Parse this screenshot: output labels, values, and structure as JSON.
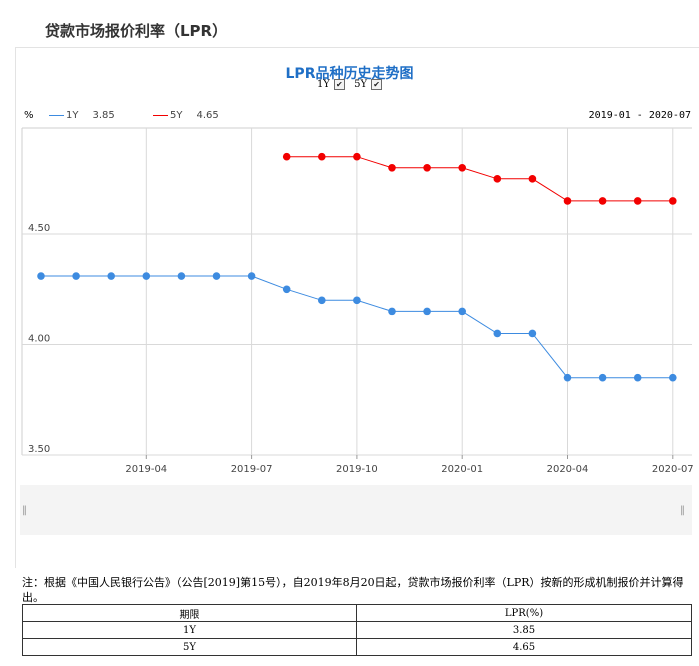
{
  "page": {
    "title": "贷款市场报价利率（LPR）"
  },
  "chart_header": {
    "title": "LPR品种历史走势图",
    "toggles": [
      {
        "label": "1Y",
        "checked": true
      },
      {
        "label": "5Y",
        "checked": true
      }
    ],
    "unit": "%",
    "range": "2019-01 - 2020-07"
  },
  "chart_data": {
    "type": "line",
    "x": [
      "2019-01",
      "2019-02",
      "2019-03",
      "2019-04",
      "2019-05",
      "2019-06",
      "2019-07",
      "2019-08",
      "2019-09",
      "2019-10",
      "2019-11",
      "2019-12",
      "2020-01",
      "2020-02",
      "2020-03",
      "2020-04",
      "2020-05",
      "2020-06",
      "2020-07"
    ],
    "xticks": [
      "2019-04",
      "2019-07",
      "2019-10",
      "2020-01",
      "2020-04",
      "2020-07"
    ],
    "yticks": [
      "3.50",
      "4.00",
      "4.50"
    ],
    "ylim": [
      3.5,
      4.98
    ],
    "grid": true,
    "legend_position": "top-left",
    "series": [
      {
        "name": "1Y",
        "color": "#3d8be0",
        "latest": "3.85",
        "values": [
          4.31,
          4.31,
          4.31,
          4.31,
          4.31,
          4.31,
          4.31,
          4.25,
          4.2,
          4.2,
          4.15,
          4.15,
          4.15,
          4.05,
          4.05,
          3.85,
          3.85,
          3.85,
          3.85
        ]
      },
      {
        "name": "5Y",
        "color": "#f20000",
        "latest": "4.65",
        "values": [
          null,
          null,
          null,
          null,
          null,
          null,
          null,
          4.85,
          4.85,
          4.85,
          4.8,
          4.8,
          4.8,
          4.75,
          4.75,
          4.65,
          4.65,
          4.65,
          4.65
        ]
      }
    ]
  },
  "note": "注：根据《中国人民银行公告》（公告[2019]第15号），自2019年8月20日起，贷款市场报价利率（LPR）按新的形成机制报价并计算得出。",
  "table": {
    "headers": [
      "期限",
      "LPR(%)"
    ],
    "rows": [
      [
        "1Y",
        "3.85"
      ],
      [
        "5Y",
        "4.65"
      ]
    ]
  }
}
